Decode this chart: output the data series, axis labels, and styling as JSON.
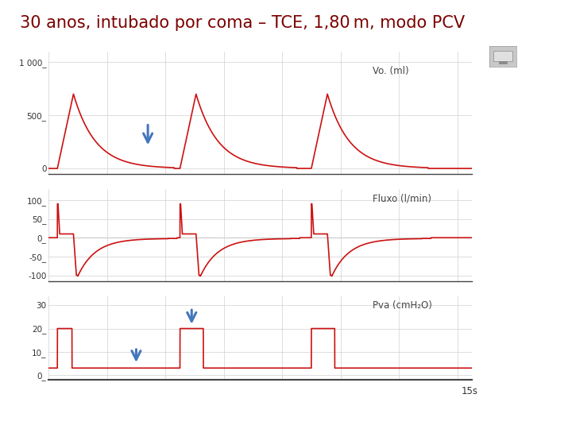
{
  "title": "30 anos, intubado por coma – TCE, 1,80 m, modo PCV",
  "title_color": "#7B0000",
  "title_fontsize": 15,
  "background_color": "#ffffff",
  "line_color": "#cc1111",
  "grid_color": "#d0d0d0",
  "label_vo": "Vo. (ml)",
  "label_fluxo": "Fluxo (l/min)",
  "label_pva": "Pva (cmH₂O)",
  "label_time": "15s",
  "yticks_vo": [
    0,
    500,
    1000
  ],
  "ytlabels_vo": [
    "0",
    "500_",
    "1 000_"
  ],
  "yticks_fluxo": [
    -100,
    -50,
    0,
    50,
    100
  ],
  "ytlabels_fluxo": [
    "-100",
    "-50_",
    "0_",
    "50_",
    "100_"
  ],
  "yticks_pva": [
    0,
    10,
    20,
    30
  ],
  "ytlabels_pva": [
    "0_",
    "10_",
    "20_",
    "30"
  ],
  "vo_ylim": [
    -50,
    1100
  ],
  "fluxo_ylim": [
    -115,
    130
  ],
  "pva_ylim": [
    -2,
    34
  ]
}
